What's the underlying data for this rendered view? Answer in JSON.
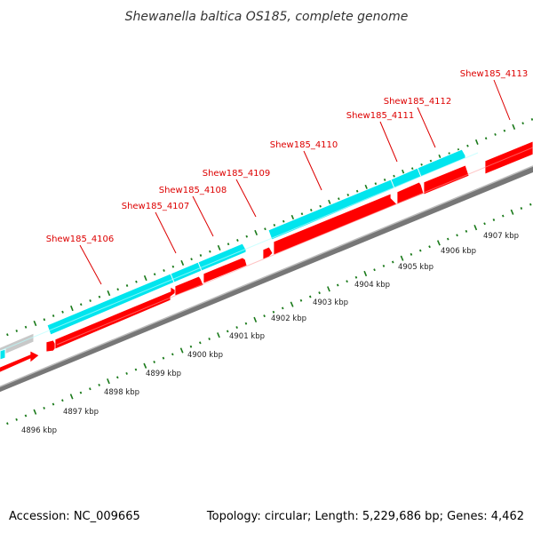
{
  "title": "Shewanella baltica OS185, complete genome",
  "footer": {
    "accession": "Accession: NC_009665",
    "summary": "Topology: circular; Length: 5,229,686 bp; Genes: 4,462"
  },
  "colors": {
    "label": "#dd0000",
    "leader": "#dd0000",
    "forward_track": "#ff0000",
    "reverse_track": "#00e5ee",
    "other_feature": "#c8c8c8",
    "backbone": "#888888",
    "ruler_ticks": "#1a7a1a"
  },
  "gene_labels": [
    {
      "text": "Shew185_4106"
    },
    {
      "text": "Shew185_4107"
    },
    {
      "text": "Shew185_4108"
    },
    {
      "text": "Shew185_4109"
    },
    {
      "text": "Shew185_4110"
    },
    {
      "text": "Shew185_4111"
    },
    {
      "text": "Shew185_4112"
    },
    {
      "text": "Shew185_4113"
    }
  ],
  "ruler_labels": [
    {
      "text": "4896 kbp"
    },
    {
      "text": "4897 kbp"
    },
    {
      "text": "4898 kbp"
    },
    {
      "text": "4899 kbp"
    },
    {
      "text": "4900 kbp"
    },
    {
      "text": "4901 kbp"
    },
    {
      "text": "4902 kbp"
    },
    {
      "text": "4903 kbp"
    },
    {
      "text": "4904 kbp"
    },
    {
      "text": "4905 kbp"
    },
    {
      "text": "4906 kbp"
    },
    {
      "text": "4907 kbp"
    }
  ]
}
